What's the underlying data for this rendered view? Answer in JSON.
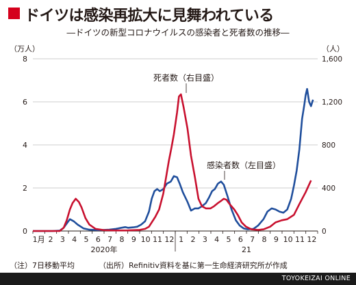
{
  "title": "ドイツは感染再拡大に見舞われている",
  "subtitle": "―ドイツの新型コロナウイルスの感染者と死者数の推移―",
  "note": "（注）7日移動平均",
  "source": "（出所）Refinitiv資料を基に第一生命経済研究所が作成",
  "publisher": "TOYOKEIZAI ONLINE",
  "colors": {
    "cases": "#1f4e9c",
    "deaths": "#c8102e",
    "accent": "#d5001c",
    "footer": "#1a1a1a"
  },
  "chart_data": {
    "type": "line",
    "left_axis": {
      "unit": "（万人）",
      "ticks": [
        0,
        2,
        4,
        6,
        8
      ],
      "ylim": [
        0,
        8
      ]
    },
    "right_axis": {
      "unit": "（人）",
      "ticks": [
        0,
        400,
        800,
        1200,
        1600
      ],
      "ylim": [
        0,
        1600
      ]
    },
    "x_ticks": [
      "1月",
      "2",
      "3",
      "4",
      "5",
      "6",
      "7",
      "8",
      "9",
      "10",
      "11",
      "12",
      "1",
      "2",
      "3",
      "4",
      "5",
      "6",
      "7",
      "8",
      "9",
      "10",
      "11",
      "12"
    ],
    "year_labels": [
      "2020年",
      "21"
    ],
    "x_range": [
      "2020-01-01",
      "2021-12-31"
    ],
    "series": [
      {
        "name": "感染者数（左目盛）",
        "axis": "left",
        "color": "#1f4e9c",
        "x": [
          "2020-01-01",
          "2020-02-20",
          "2020-03-10",
          "2020-03-20",
          "2020-03-28",
          "2020-04-05",
          "2020-04-15",
          "2020-04-25",
          "2020-05-10",
          "2020-05-25",
          "2020-06-15",
          "2020-07-01",
          "2020-07-15",
          "2020-08-01",
          "2020-08-15",
          "2020-08-25",
          "2020-09-01",
          "2020-09-15",
          "2020-09-25",
          "2020-10-05",
          "2020-10-15",
          "2020-10-25",
          "2020-11-01",
          "2020-11-08",
          "2020-11-15",
          "2020-11-22",
          "2020-12-01",
          "2020-12-10",
          "2020-12-20",
          "2020-12-28",
          "2021-01-05",
          "2021-01-12",
          "2021-01-20",
          "2021-02-01",
          "2021-02-10",
          "2021-02-20",
          "2021-03-01",
          "2021-03-10",
          "2021-03-20",
          "2021-03-28",
          "2021-04-05",
          "2021-04-12",
          "2021-04-20",
          "2021-04-28",
          "2021-05-05",
          "2021-05-15",
          "2021-05-25",
          "2021-06-05",
          "2021-06-15",
          "2021-06-25",
          "2021-07-05",
          "2021-07-20",
          "2021-08-01",
          "2021-08-15",
          "2021-08-25",
          "2021-09-05",
          "2021-09-15",
          "2021-09-25",
          "2021-10-05",
          "2021-10-15",
          "2021-10-25",
          "2021-11-01",
          "2021-11-08",
          "2021-11-15",
          "2021-11-22",
          "2021-11-28",
          "2021-12-01",
          "2021-12-05",
          "2021-12-10",
          "2021-12-15",
          "2021-12-20"
        ],
        "values": [
          0,
          0,
          0.02,
          0.15,
          0.35,
          0.55,
          0.45,
          0.3,
          0.12,
          0.06,
          0.04,
          0.05,
          0.06,
          0.1,
          0.15,
          0.18,
          0.15,
          0.17,
          0.2,
          0.3,
          0.45,
          0.9,
          1.5,
          1.85,
          1.95,
          1.85,
          1.95,
          2.2,
          2.3,
          2.55,
          2.5,
          2.2,
          1.8,
          1.35,
          0.95,
          1.05,
          1.05,
          1.15,
          1.3,
          1.55,
          1.85,
          1.95,
          2.2,
          2.3,
          2.15,
          1.6,
          1.0,
          0.5,
          0.25,
          0.12,
          0.08,
          0.1,
          0.25,
          0.55,
          0.9,
          1.05,
          1.0,
          0.9,
          0.85,
          1.0,
          1.5,
          2.1,
          2.8,
          3.8,
          5.2,
          5.9,
          6.3,
          6.6,
          6.0,
          5.8,
          6.1
        ]
      },
      {
        "name": "死者数（右目盛）",
        "axis": "right",
        "color": "#c8102e",
        "x": [
          "2020-01-01",
          "2020-03-10",
          "2020-03-20",
          "2020-03-28",
          "2020-04-05",
          "2020-04-12",
          "2020-04-20",
          "2020-04-28",
          "2020-05-05",
          "2020-05-15",
          "2020-05-25",
          "2020-06-10",
          "2020-07-01",
          "2020-08-01",
          "2020-09-01",
          "2020-10-01",
          "2020-10-15",
          "2020-10-25",
          "2020-11-01",
          "2020-11-10",
          "2020-11-20",
          "2020-12-01",
          "2020-12-08",
          "2020-12-15",
          "2020-12-22",
          "2020-12-28",
          "2021-01-05",
          "2021-01-10",
          "2021-01-15",
          "2021-01-22",
          "2021-02-01",
          "2021-02-10",
          "2021-02-20",
          "2021-03-01",
          "2021-03-10",
          "2021-03-20",
          "2021-04-01",
          "2021-04-10",
          "2021-04-20",
          "2021-04-28",
          "2021-05-05",
          "2021-05-12",
          "2021-05-20",
          "2021-06-01",
          "2021-06-10",
          "2021-06-20",
          "2021-07-01",
          "2021-07-15",
          "2021-08-01",
          "2021-08-15",
          "2021-09-01",
          "2021-09-15",
          "2021-10-01",
          "2021-10-15",
          "2021-11-01",
          "2021-11-15",
          "2021-12-01",
          "2021-12-15"
        ],
        "values": [
          0,
          0,
          30,
          100,
          200,
          260,
          300,
          270,
          220,
          120,
          60,
          20,
          8,
          5,
          6,
          10,
          20,
          40,
          80,
          130,
          200,
          350,
          500,
          650,
          780,
          900,
          1100,
          1250,
          1270,
          1150,
          950,
          700,
          500,
          300,
          230,
          210,
          210,
          230,
          260,
          280,
          300,
          290,
          250,
          200,
          150,
          80,
          40,
          15,
          10,
          15,
          40,
          80,
          100,
          110,
          150,
          250,
          360,
          470
        ]
      }
    ],
    "annotations": [
      "死者数（右目盛）",
      "感染者数（左目盛）"
    ]
  }
}
